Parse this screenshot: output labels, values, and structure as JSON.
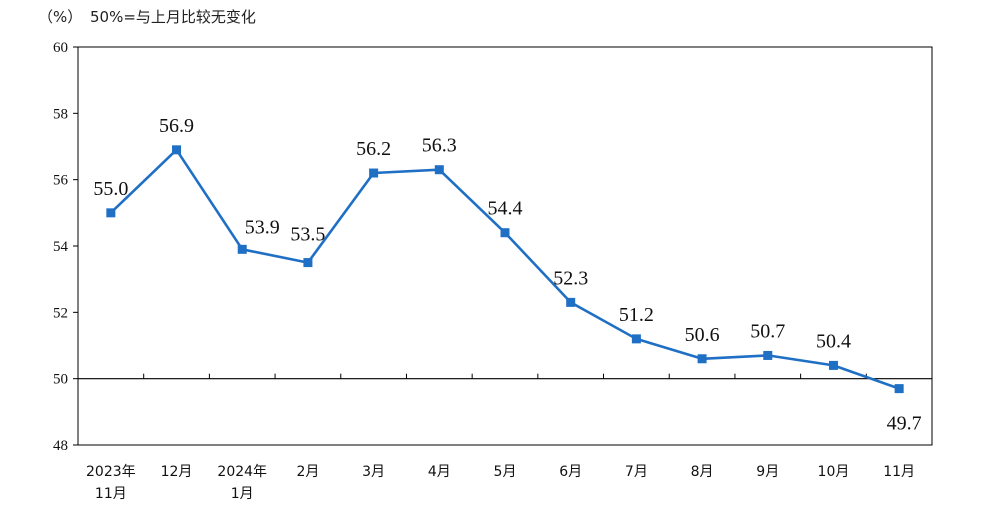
{
  "header": {
    "unit": "（%）",
    "note": "50%=与上月比较无变化"
  },
  "colors": {
    "series": "#1f6fc5",
    "axis": "#000000"
  },
  "chart_data": {
    "type": "line",
    "categories": [
      [
        "2023年",
        "11月"
      ],
      [
        "12月"
      ],
      [
        "2024年",
        "1月"
      ],
      [
        "2月"
      ],
      [
        "3月"
      ],
      [
        "4月"
      ],
      [
        "5月"
      ],
      [
        "6月"
      ],
      [
        "7月"
      ],
      [
        "8月"
      ],
      [
        "9月"
      ],
      [
        "10月"
      ],
      [
        "11月"
      ]
    ],
    "series": [
      {
        "values": [
          55.0,
          56.9,
          53.9,
          53.5,
          56.2,
          56.3,
          54.4,
          52.3,
          51.2,
          50.6,
          50.7,
          50.4,
          49.7
        ]
      }
    ],
    "data_labels": [
      "55.0",
      "56.9",
      "53.9",
      "53.5",
      "56.2",
      "56.3",
      "54.4",
      "52.3",
      "51.2",
      "50.6",
      "50.7",
      "50.4",
      "49.7"
    ],
    "yticks": [
      48,
      50,
      52,
      54,
      56,
      58,
      60
    ],
    "ylim": [
      48,
      60
    ],
    "reference_line": 50,
    "grid": false,
    "legend": "none",
    "marker": "square"
  }
}
